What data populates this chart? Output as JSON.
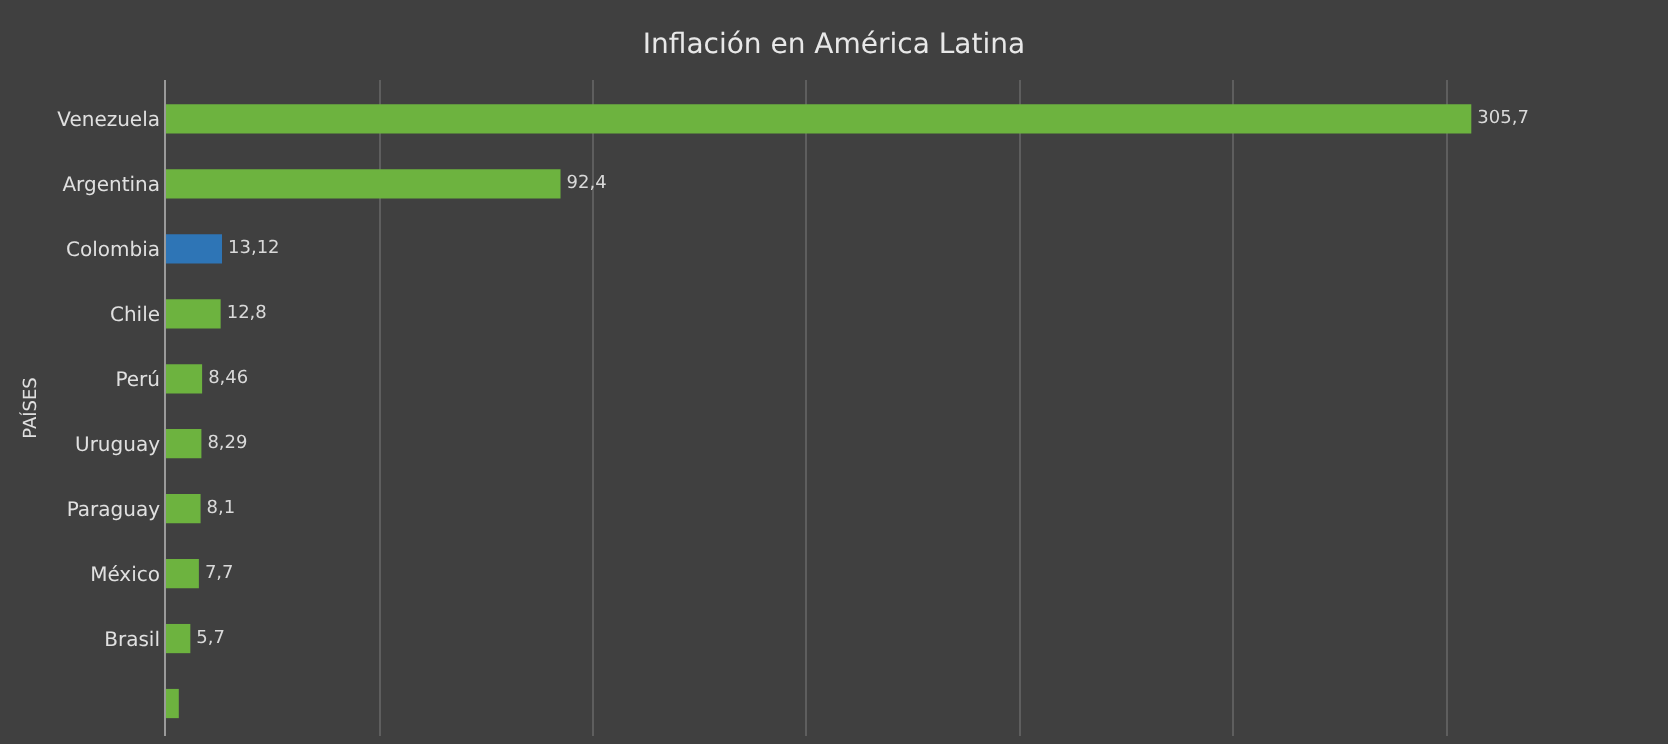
{
  "chart_data": {
    "type": "bar",
    "orientation": "horizontal",
    "title": "Inflación en América Latina",
    "ylabel": "PAÍSES",
    "categories": [
      "Venezuela",
      "Argentina",
      "Colombia",
      "Chile",
      "Perú",
      "Uruguay",
      "Paraguay",
      "México",
      "Brasil",
      null
    ],
    "values": [
      305.7,
      92.4,
      13.12,
      12.8,
      8.46,
      8.29,
      8.1,
      7.7,
      5.7,
      3
    ],
    "colors": [
      "#6db33f",
      "#6db33f",
      "#2e75b6",
      "#6db33f",
      "#6db33f",
      "#6db33f",
      "#6db33f",
      "#6db33f",
      "#6db33f",
      "#6db33f"
    ],
    "value_labels": [
      "305,7",
      "92,4",
      "13,12",
      "12,8",
      "8,46",
      "8,29",
      "8,1",
      "7,7",
      "5,7",
      null
    ],
    "xticks": [
      {
        "value": 0,
        "label": null
      },
      {
        "value": 50,
        "label": null
      },
      {
        "value": 100,
        "label": null
      },
      {
        "value": 150,
        "label": null
      },
      {
        "value": 200,
        "label": null
      },
      {
        "value": 250,
        "label": null
      },
      {
        "value": 300,
        "label": null
      }
    ],
    "grid": "x",
    "tick_labels": "y",
    "legend": false
  }
}
